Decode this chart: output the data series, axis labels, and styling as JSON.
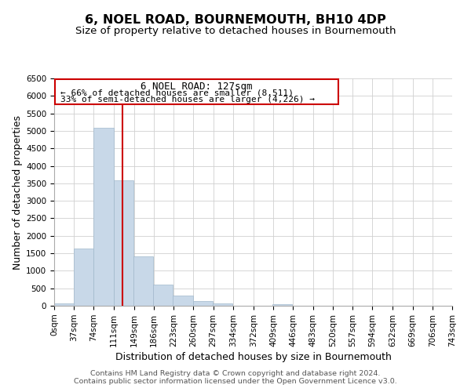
{
  "title": "6, NOEL ROAD, BOURNEMOUTH, BH10 4DP",
  "subtitle": "Size of property relative to detached houses in Bournemouth",
  "xlabel": "Distribution of detached houses by size in Bournemouth",
  "ylabel": "Number of detached properties",
  "bar_edges": [
    0,
    37,
    74,
    111,
    148,
    185,
    222,
    259,
    296,
    333,
    370,
    407,
    444,
    481,
    518,
    555,
    592,
    629,
    666,
    703,
    740
  ],
  "bar_heights": [
    60,
    1630,
    5080,
    3580,
    1420,
    610,
    300,
    145,
    60,
    0,
    0,
    50,
    0,
    0,
    0,
    0,
    0,
    0,
    0,
    0
  ],
  "bar_color": "#c8d8e8",
  "bar_edgecolor": "#a0b8cc",
  "grid_color": "#d0d0d0",
  "vline_x": 127,
  "vline_color": "#cc0000",
  "annotation_box_edgecolor": "#cc0000",
  "annotation_title": "6 NOEL ROAD: 127sqm",
  "annotation_line1": "← 66% of detached houses are smaller (8,511)",
  "annotation_line2": "33% of semi-detached houses are larger (4,226) →",
  "xlim": [
    0,
    743
  ],
  "ylim": [
    0,
    6500
  ],
  "xtick_labels": [
    "0sqm",
    "37sqm",
    "74sqm",
    "111sqm",
    "149sqm",
    "186sqm",
    "223sqm",
    "260sqm",
    "297sqm",
    "334sqm",
    "372sqm",
    "409sqm",
    "446sqm",
    "483sqm",
    "520sqm",
    "557sqm",
    "594sqm",
    "632sqm",
    "669sqm",
    "706sqm",
    "743sqm"
  ],
  "xtick_positions": [
    0,
    37,
    74,
    111,
    149,
    186,
    223,
    260,
    297,
    334,
    372,
    409,
    446,
    483,
    520,
    557,
    594,
    632,
    669,
    706,
    743
  ],
  "ytick_positions": [
    0,
    500,
    1000,
    1500,
    2000,
    2500,
    3000,
    3500,
    4000,
    4500,
    5000,
    5500,
    6000,
    6500
  ],
  "footer_line1": "Contains HM Land Registry data © Crown copyright and database right 2024.",
  "footer_line2": "Contains public sector information licensed under the Open Government Licence v3.0.",
  "title_fontsize": 11.5,
  "subtitle_fontsize": 9.5,
  "axis_label_fontsize": 9,
  "tick_fontsize": 7.5,
  "footer_fontsize": 6.8,
  "annotation_title_fontsize": 9,
  "annotation_text_fontsize": 8
}
